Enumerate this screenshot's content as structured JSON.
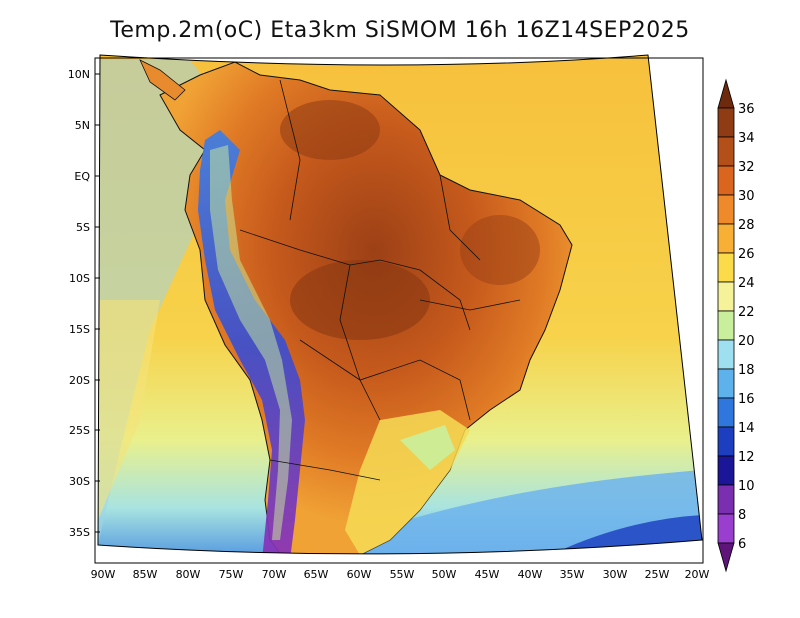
{
  "title": "Temp.2m(oC) Eta3km SiSMOM 16h 16Z14SEP2025",
  "lat_labels": [
    "10N",
    "5N",
    "EQ",
    "5S",
    "10S",
    "15S",
    "20S",
    "25S",
    "30S",
    "35S"
  ],
  "lon_labels": [
    "90W",
    "85W",
    "80W",
    "75W",
    "70W",
    "65W",
    "60W",
    "55W",
    "50W",
    "45W",
    "40W",
    "35W",
    "30W",
    "25W",
    "20W"
  ],
  "colorbar": {
    "labels": [
      "36",
      "34",
      "32",
      "30",
      "28",
      "26",
      "24",
      "22",
      "20",
      "18",
      "16",
      "14",
      "12",
      "10",
      "8",
      "6"
    ],
    "colors": [
      "#6e2a0d",
      "#8f3b14",
      "#b34f18",
      "#d9651f",
      "#ef8a2b",
      "#f7b035",
      "#fbdb4a",
      "#f5f29a",
      "#c9ef9c",
      "#9fe0f0",
      "#5eb2ec",
      "#2f77dd",
      "#1d3fbf",
      "#1b1598",
      "#7a2fb0",
      "#9a3ed0",
      "#5e1478"
    ]
  }
}
